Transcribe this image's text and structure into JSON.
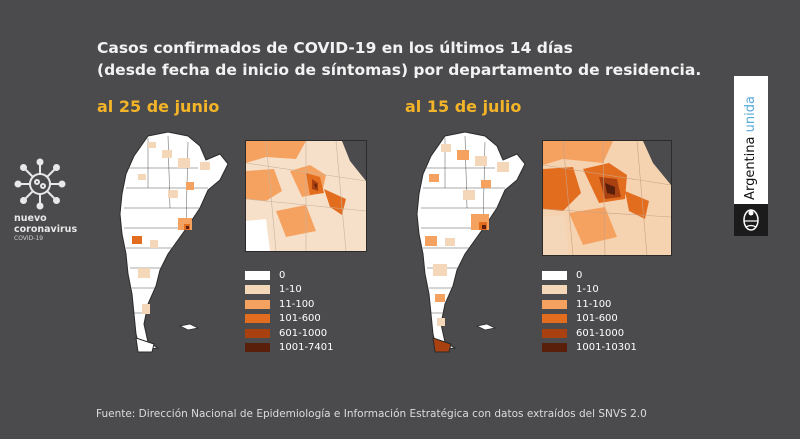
{
  "title": {
    "line1": "Casos confirmados de COVID-19 en los últimos 14 días",
    "line2": "(desde fecha de inicio de síntomas) por departamento de residencia."
  },
  "panels": [
    {
      "date_label": "al 25 de junio",
      "legend": [
        {
          "label": "0",
          "color": "#ffffff"
        },
        {
          "label": "1-10",
          "color": "#f4d6b8"
        },
        {
          "label": "11-100",
          "color": "#f5a261"
        },
        {
          "label": "101-600",
          "color": "#e36d1f"
        },
        {
          "label": "601-1000",
          "color": "#a8400f"
        },
        {
          "label": "1001-7401",
          "color": "#5a1f0a"
        }
      ]
    },
    {
      "date_label": "al 15 de julio",
      "legend": [
        {
          "label": "0",
          "color": "#ffffff"
        },
        {
          "label": "1-10",
          "color": "#f4d6b8"
        },
        {
          "label": "11-100",
          "color": "#f5a261"
        },
        {
          "label": "101-600",
          "color": "#e36d1f"
        },
        {
          "label": "601-1000",
          "color": "#a8400f"
        },
        {
          "label": "1001-10301",
          "color": "#5a1f0a"
        }
      ]
    }
  ],
  "logo": {
    "line1": "nuevo",
    "line2": "coronavirus",
    "line3": "COVID-19"
  },
  "brand": {
    "word1": "Argentina",
    "word2": "unida"
  },
  "source": "Fuente: Dirección Nacional de Epidemiología e Información Estratégica con datos extraídos del SNVS 2.0",
  "colors": {
    "background": "#4b4b4d",
    "accent": "#f4b428",
    "brand_blue": "#5aa9db"
  }
}
